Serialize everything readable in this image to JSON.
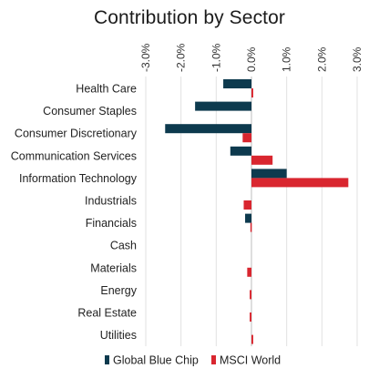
{
  "chart_data": {
    "type": "bar",
    "orientation": "horizontal",
    "title": "Contribution by Sector",
    "xlim": [
      -3.0,
      3.0
    ],
    "x_ticks": [
      -3.0,
      -2.0,
      -1.0,
      0.0,
      1.0,
      2.0,
      3.0
    ],
    "tick_labels": [
      "-3.0%",
      "-2.0%",
      "-1.0%",
      "0.0%",
      "1.0%",
      "2.0%",
      "3.0%"
    ],
    "grid": true,
    "legend_position": "bottom",
    "categories": [
      "Health Care",
      "Consumer Staples",
      "Consumer Discretionary",
      "Communication Services",
      "Information Technology",
      "Industrials",
      "Financials",
      "Cash",
      "Materials",
      "Energy",
      "Real Estate",
      "Utilities"
    ],
    "series": [
      {
        "name": "Global Blue Chip",
        "color": "#0d3a4e",
        "values": [
          -0.8,
          -1.6,
          -2.45,
          -0.6,
          1.0,
          0.0,
          -0.18,
          0.0,
          0.0,
          0.0,
          0.0,
          0.0
        ]
      },
      {
        "name": "MSCI World",
        "color": "#d9262f",
        "values": [
          0.05,
          0.0,
          -0.25,
          0.6,
          2.75,
          -0.22,
          -0.03,
          0.0,
          -0.12,
          -0.05,
          -0.05,
          0.05
        ]
      }
    ]
  }
}
